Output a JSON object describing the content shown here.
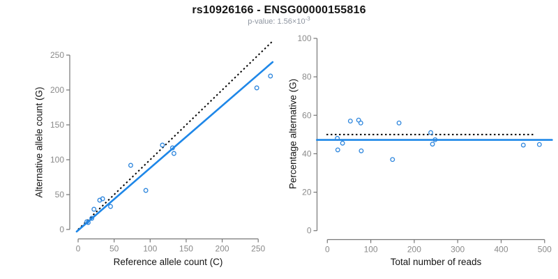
{
  "header": {
    "title": "rs10926166 - ENSG00000155816",
    "pvalue_prefix": "p-value: 1.56×10",
    "pvalue_exponent": "-3"
  },
  "colors": {
    "point_blue": "#2e86dd",
    "line_blue": "#1e87e8",
    "dotted_black": "#000000",
    "axis_gray": "#767676",
    "tick_label_gray": "#8a8a8a",
    "title_black": "#141414",
    "subtitle_gray": "#8e95a0"
  },
  "chart_data": [
    {
      "type": "scatter",
      "panel": "left",
      "xlabel": "Reference allele count (C)",
      "ylabel": "Alternative allele count (G)",
      "xlim": [
        0,
        270
      ],
      "ylim": [
        0,
        250
      ],
      "xticks": [
        0,
        50,
        100,
        150,
        200,
        250
      ],
      "yticks": [
        0,
        50,
        100,
        150,
        200,
        250
      ],
      "grid": false,
      "points": [
        [
          12,
          11
        ],
        [
          14,
          10
        ],
        [
          19,
          16
        ],
        [
          22,
          29
        ],
        [
          30,
          42
        ],
        [
          34,
          44
        ],
        [
          45,
          33
        ],
        [
          73,
          92
        ],
        [
          94,
          56
        ],
        [
          117,
          121
        ],
        [
          131,
          117
        ],
        [
          133,
          109
        ],
        [
          248,
          203
        ],
        [
          267,
          220
        ]
      ],
      "lines": [
        {
          "name": "identity-line",
          "style": "dotted",
          "color": "dotted_black",
          "from": [
            0,
            0
          ],
          "to": [
            271,
            271
          ]
        },
        {
          "name": "fit-line",
          "style": "solid",
          "color": "line_blue",
          "from": [
            -2,
            -3
          ],
          "to": [
            270,
            240
          ]
        }
      ]
    },
    {
      "type": "scatter",
      "panel": "right",
      "xlabel": "Total number of reads",
      "ylabel": "Percentage alternative (G)",
      "xlim": [
        0,
        500
      ],
      "ylim": [
        0,
        100
      ],
      "xticks": [
        0,
        100,
        200,
        300,
        400,
        500
      ],
      "yticks": [
        0,
        20,
        40,
        60,
        80,
        100
      ],
      "grid": false,
      "points": [
        [
          23,
          48
        ],
        [
          24,
          42
        ],
        [
          35,
          45.5
        ],
        [
          53,
          57
        ],
        [
          72,
          57.5
        ],
        [
          77,
          56
        ],
        [
          78,
          41.5
        ],
        [
          150,
          37
        ],
        [
          165,
          56
        ],
        [
          238,
          51
        ],
        [
          242,
          45
        ],
        [
          248,
          47.3
        ],
        [
          451,
          44.5
        ],
        [
          488,
          44.8
        ]
      ],
      "lines": [
        {
          "name": "expected-50pct-line",
          "style": "dotted",
          "color": "dotted_black",
          "from": [
            -2,
            50
          ],
          "to": [
            478,
            50
          ]
        },
        {
          "name": "fit-line",
          "style": "solid",
          "color": "line_blue",
          "from": [
            -24,
            47.2
          ],
          "to": [
            517,
            47.2
          ]
        }
      ]
    }
  ]
}
